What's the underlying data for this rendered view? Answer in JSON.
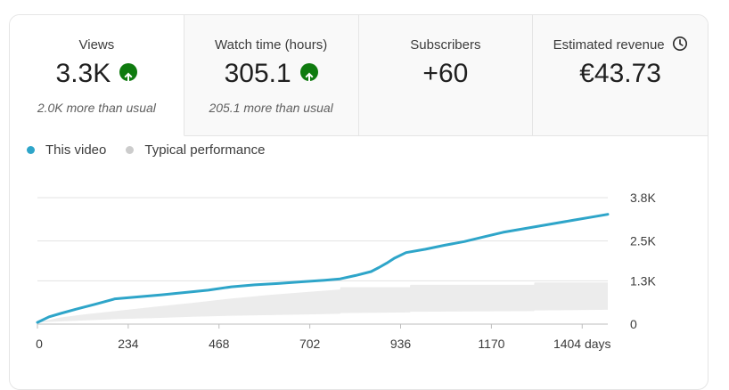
{
  "metrics": [
    {
      "label": "Views",
      "value": "3.3K",
      "note": "2.0K more than usual",
      "trend": "up",
      "active": true
    },
    {
      "label": "Watch time (hours)",
      "value": "305.1",
      "note": "205.1 more than usual",
      "trend": "up",
      "active": false
    },
    {
      "label": "Subscribers",
      "value": "+60",
      "note": "",
      "trend": "",
      "active": false
    },
    {
      "label": "Estimated revenue",
      "value": "€43.73",
      "note": "",
      "trend": "",
      "active": false,
      "icon": "clock-icon"
    }
  ],
  "legend": {
    "this_video": "This video",
    "typical": "Typical performance"
  },
  "colors": {
    "this_video": "#2ea5c9",
    "typical": "#d3d3d3",
    "up_badge": "#0f7b0f"
  },
  "chart_data": {
    "type": "line",
    "x_unit": "days",
    "xlim": [
      0,
      1470
    ],
    "ylim": [
      0,
      3800
    ],
    "x_ticks": [
      {
        "value": 0,
        "label": "0"
      },
      {
        "value": 234,
        "label": "234"
      },
      {
        "value": 468,
        "label": "468"
      },
      {
        "value": 702,
        "label": "702"
      },
      {
        "value": 936,
        "label": "936"
      },
      {
        "value": 1170,
        "label": "1170"
      },
      {
        "value": 1404,
        "label": "1404 days"
      }
    ],
    "y_ticks": [
      {
        "value": 0,
        "label": "0"
      },
      {
        "value": 1300,
        "label": "1.3K"
      },
      {
        "value": 2500,
        "label": "2.5K"
      },
      {
        "value": 3800,
        "label": "3.8K"
      }
    ],
    "grid": true,
    "series": [
      {
        "name": "This video",
        "x": [
          0,
          30,
          60,
          100,
          150,
          200,
          260,
          320,
          380,
          440,
          500,
          560,
          620,
          680,
          740,
          780,
          820,
          860,
          880,
          900,
          920,
          950,
          1000,
          1050,
          1100,
          1150,
          1200,
          1260,
          1320,
          1380,
          1430,
          1470
        ],
        "values": [
          50,
          220,
          320,
          450,
          600,
          760,
          820,
          880,
          950,
          1020,
          1120,
          1180,
          1220,
          1270,
          1320,
          1360,
          1460,
          1580,
          1700,
          1830,
          1980,
          2150,
          2250,
          2370,
          2480,
          2620,
          2760,
          2880,
          3000,
          3120,
          3220,
          3300
        ]
      },
      {
        "name": "Typical performance",
        "x": [
          0,
          60,
          120,
          200,
          300,
          400,
          500,
          600,
          700,
          780,
          781,
          960,
          961,
          1280,
          1281,
          1470
        ],
        "upper": [
          50,
          200,
          290,
          390,
          520,
          640,
          770,
          880,
          970,
          1040,
          1110,
          1110,
          1180,
          1180,
          1250,
          1250
        ],
        "lower": [
          50,
          80,
          110,
          150,
          180,
          220,
          250,
          270,
          290,
          310,
          330,
          350,
          370,
          390,
          410,
          430
        ]
      }
    ]
  }
}
